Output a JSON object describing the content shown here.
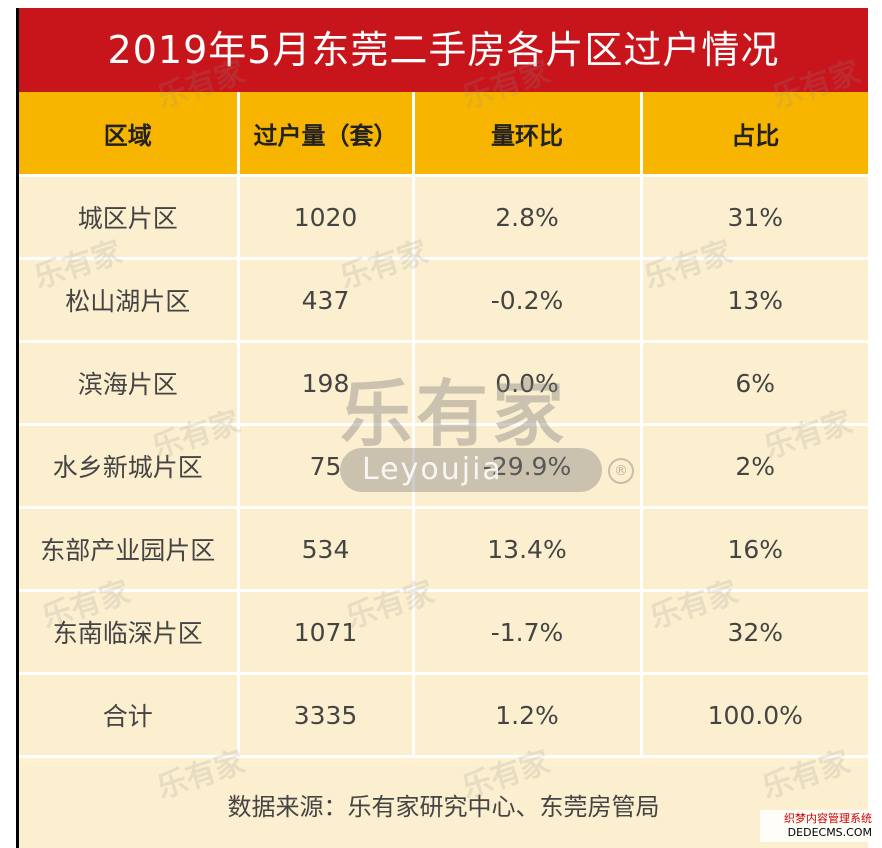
{
  "title": "2019年5月东莞二手房各片区过户情况",
  "chart_data": {
    "type": "table",
    "title": "2019年5月东莞二手房各片区过户情况",
    "columns": [
      "区域",
      "过户量（套）",
      "量环比",
      "占比"
    ],
    "rows": [
      [
        "城区片区",
        "1020",
        "2.8%",
        "31%"
      ],
      [
        "松山湖片区",
        "437",
        "-0.2%",
        "13%"
      ],
      [
        "滨海片区",
        "198",
        "0.0%",
        "6%"
      ],
      [
        "水乡新城片区",
        "75",
        "-29.9%",
        "2%"
      ],
      [
        "东部产业园片区",
        "534",
        "13.4%",
        "16%"
      ],
      [
        "东南临深片区",
        "1071",
        "-1.7%",
        "32%"
      ],
      [
        "合计",
        "3335",
        "1.2%",
        "100.0%"
      ]
    ],
    "source": "数据来源：乐有家研究中心、东莞房管局"
  },
  "watermark": {
    "brand": "乐有家",
    "latin": "Leyoujia",
    "reg": "®"
  },
  "corner_mark": {
    "line1": "织梦内容管理系统",
    "line2": "DEDECMS.COM"
  },
  "colors": {
    "title_bg": "#c8151b",
    "header_bg": "#f8b500",
    "cell_bg": "#fcefcf"
  }
}
